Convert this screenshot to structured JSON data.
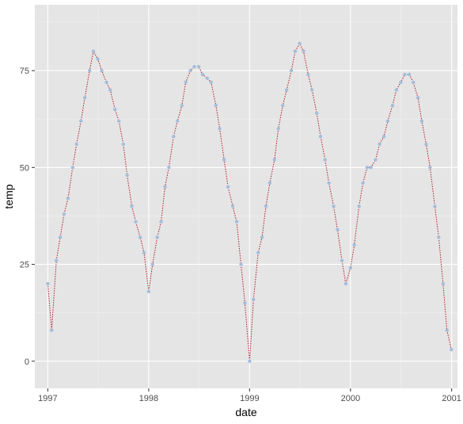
{
  "chart_data": {
    "type": "line",
    "xlabel": "date",
    "ylabel": "temp",
    "x_ticks": [
      "1997",
      "1998",
      "1999",
      "2000",
      "2001"
    ],
    "y_ticks": [
      0,
      25,
      50,
      75
    ],
    "xlim": [
      "1996-11-15",
      "2001-01-22"
    ],
    "ylim": [
      -7,
      92
    ],
    "grid": true,
    "colors": {
      "panel_background": "#e5e5e5",
      "grid_major": "#ffffff",
      "grid_minor": "#f2f2f2",
      "line": "#b2182b",
      "point": "#a6bddb",
      "tick_mark": "#333333"
    },
    "series": [
      {
        "style": "dotted line with points",
        "x": [
          "1997-01-01",
          "1997-01-15",
          "1997-02-01",
          "1997-02-15",
          "1997-03-01",
          "1997-03-15",
          "1997-04-01",
          "1997-04-15",
          "1997-05-01",
          "1997-05-15",
          "1997-06-01",
          "1997-06-15",
          "1997-07-01",
          "1997-07-15",
          "1997-08-01",
          "1997-08-15",
          "1997-09-01",
          "1997-09-15",
          "1997-10-01",
          "1997-10-15",
          "1997-11-01",
          "1997-11-15",
          "1997-12-01",
          "1997-12-15",
          "1998-01-01",
          "1998-01-15",
          "1998-02-01",
          "1998-02-15",
          "1998-03-01",
          "1998-03-15",
          "1998-04-01",
          "1998-04-15",
          "1998-05-01",
          "1998-05-15",
          "1998-06-01",
          "1998-06-15",
          "1998-07-01",
          "1998-07-15",
          "1998-08-01",
          "1998-08-15",
          "1998-09-01",
          "1998-09-15",
          "1998-10-01",
          "1998-10-15",
          "1998-11-01",
          "1998-11-15",
          "1998-12-01",
          "1998-12-15",
          "1999-01-01",
          "1999-01-15",
          "1999-02-01",
          "1999-02-15",
          "1999-03-01",
          "1999-03-15",
          "1999-04-01",
          "1999-04-15",
          "1999-05-01",
          "1999-05-15",
          "1999-06-01",
          "1999-06-15",
          "1999-07-01",
          "1999-07-15",
          "1999-08-01",
          "1999-08-15",
          "1999-09-01",
          "1999-09-15",
          "1999-10-01",
          "1999-10-15",
          "1999-11-01",
          "1999-11-15",
          "1999-12-01",
          "1999-12-15",
          "2000-01-01",
          "2000-01-15",
          "2000-02-01",
          "2000-02-15",
          "2000-03-01",
          "2000-03-15",
          "2000-04-01",
          "2000-04-15",
          "2000-05-01",
          "2000-05-15",
          "2000-06-01",
          "2000-06-15",
          "2000-07-01",
          "2000-07-15",
          "2000-08-01",
          "2000-08-15",
          "2000-09-01",
          "2000-09-15",
          "2000-10-01",
          "2000-10-15",
          "2000-11-01",
          "2000-11-15",
          "2000-12-01",
          "2000-12-15",
          "2000-12-31"
        ],
        "values": [
          20,
          8,
          26,
          32,
          38,
          42,
          50,
          56,
          62,
          68,
          75,
          80,
          78,
          75,
          72,
          70,
          65,
          62,
          56,
          48,
          40,
          36,
          32,
          28,
          18,
          25,
          32,
          36,
          45,
          50,
          58,
          62,
          66,
          72,
          75,
          76,
          76,
          74,
          73,
          72,
          66,
          60,
          52,
          45,
          40,
          36,
          25,
          15,
          0,
          16,
          28,
          32,
          40,
          46,
          52,
          60,
          66,
          70,
          75,
          80,
          82,
          80,
          74,
          70,
          64,
          58,
          52,
          46,
          40,
          34,
          26,
          20,
          24,
          30,
          40,
          46,
          50,
          50,
          52,
          56,
          58,
          62,
          66,
          70,
          72,
          74,
          74,
          72,
          68,
          62,
          56,
          50,
          40,
          32,
          20,
          8,
          3
        ]
      }
    ]
  }
}
